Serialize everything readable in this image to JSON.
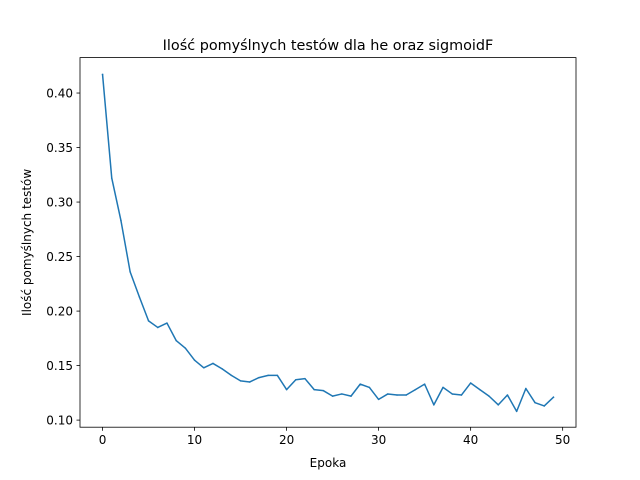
{
  "chart_data": {
    "type": "line",
    "title": "Ilość pomyślnych testów dla he oraz sigmoidF",
    "xlabel": "Epoka",
    "ylabel": "Ilość pomyślnych testów",
    "xlim": [
      -2.45,
      51.45
    ],
    "ylim": [
      0.0935,
      0.4325
    ],
    "xticks": [
      0,
      10,
      20,
      30,
      40,
      50
    ],
    "xtick_labels": [
      "0",
      "10",
      "20",
      "30",
      "40",
      "50"
    ],
    "yticks": [
      0.1,
      0.15,
      0.2,
      0.25,
      0.3,
      0.35,
      0.4
    ],
    "ytick_labels": [
      "0.10",
      "0.15",
      "0.20",
      "0.25",
      "0.30",
      "0.35",
      "0.40"
    ],
    "grid": false,
    "series": [
      {
        "color": "#1f77b4",
        "x": [
          0,
          1,
          2,
          3,
          4,
          5,
          6,
          7,
          8,
          9,
          10,
          11,
          12,
          13,
          14,
          15,
          16,
          17,
          18,
          19,
          20,
          21,
          22,
          23,
          24,
          25,
          26,
          27,
          28,
          29,
          30,
          31,
          32,
          33,
          34,
          35,
          36,
          37,
          38,
          39,
          40,
          41,
          42,
          43,
          44,
          45,
          46,
          47,
          48,
          49
        ],
        "values": [
          0.417,
          0.322,
          0.283,
          0.236,
          0.213,
          0.191,
          0.185,
          0.189,
          0.173,
          0.166,
          0.155,
          0.148,
          0.152,
          0.147,
          0.141,
          0.136,
          0.135,
          0.139,
          0.141,
          0.141,
          0.128,
          0.137,
          0.138,
          0.128,
          0.127,
          0.122,
          0.124,
          0.122,
          0.133,
          0.13,
          0.119,
          0.124,
          0.123,
          0.123,
          0.128,
          0.133,
          0.114,
          0.13,
          0.124,
          0.123,
          0.134,
          0.128,
          0.122,
          0.114,
          0.123,
          0.108,
          0.129,
          0.116,
          0.113,
          0.121
        ]
      }
    ]
  }
}
